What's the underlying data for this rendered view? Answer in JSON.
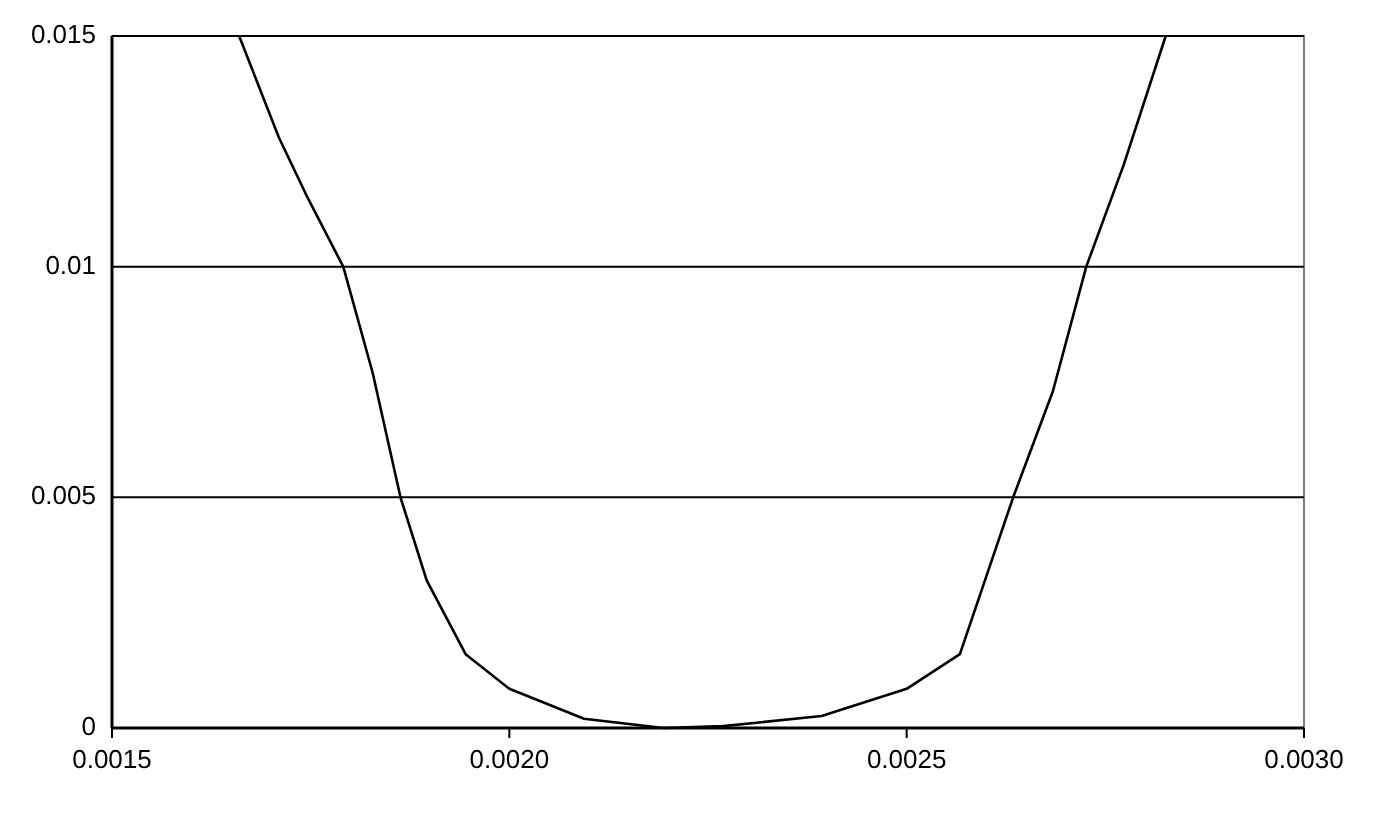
{
  "chart_data": {
    "type": "line",
    "x": [
      0.00166,
      0.00171,
      0.001746,
      0.001791,
      0.001828,
      0.001863,
      0.001896,
      0.001945,
      0.002,
      0.002094,
      0.002194,
      0.002269,
      0.002393,
      0.0025,
      0.002567,
      0.002634,
      0.002684,
      0.002726,
      0.002773,
      0.002826
    ],
    "series": [
      {
        "color": "#000000",
        "values": [
          0.015,
          0.0128,
          0.0115,
          0.01,
          0.0077,
          0.005,
          0.0032,
          0.0016,
          0.00085,
          0.0002,
          0.0,
          4e-05,
          0.00026,
          0.00085,
          0.0016,
          0.005,
          0.0073,
          0.01,
          0.0122,
          0.015
        ]
      }
    ],
    "xlim": [
      0.0015,
      0.003
    ],
    "ylim": [
      0,
      0.015
    ],
    "xticks": [
      {
        "value": 0.0015,
        "label": "0.0015"
      },
      {
        "value": 0.002,
        "label": "0.0020"
      },
      {
        "value": 0.0025,
        "label": "0.0025"
      },
      {
        "value": 0.003,
        "label": "0.0030"
      }
    ],
    "yticks": [
      0,
      0.005,
      0.01,
      0.015
    ],
    "grid": "y",
    "marker": "none",
    "line_style": "solid"
  }
}
